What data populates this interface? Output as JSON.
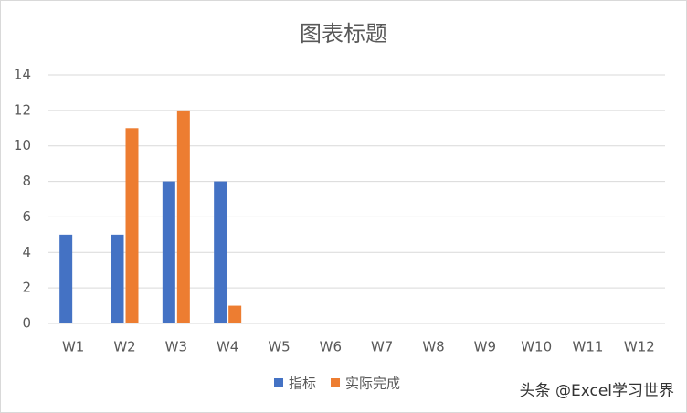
{
  "chart_data": {
    "type": "bar",
    "title": "图表标题",
    "categories": [
      "W1",
      "W2",
      "W3",
      "W4",
      "W5",
      "W6",
      "W7",
      "W8",
      "W9",
      "W10",
      "W11",
      "W12"
    ],
    "series": [
      {
        "name": "指标",
        "color": "#4472c4",
        "values": [
          5,
          5,
          8,
          8,
          null,
          null,
          null,
          null,
          null,
          null,
          null,
          null
        ]
      },
      {
        "name": "实际完成",
        "color": "#ed7d31",
        "values": [
          null,
          11,
          12,
          1,
          null,
          null,
          null,
          null,
          null,
          null,
          null,
          null
        ]
      }
    ],
    "ylim": [
      0,
      14
    ],
    "yticks": [
      0,
      2,
      4,
      6,
      8,
      10,
      12,
      14
    ],
    "grid": true,
    "legend": "bottom",
    "watermark": "头条 @Excel学习世界"
  }
}
